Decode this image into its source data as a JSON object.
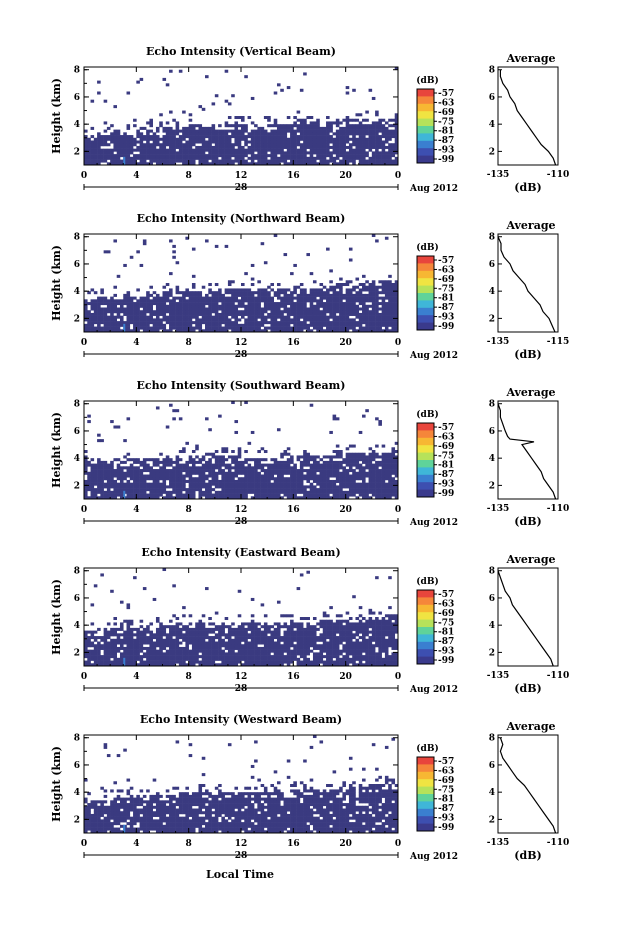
{
  "figure": {
    "xlabel_bottom": "Local Time",
    "colorbar": {
      "unit_label": "(dB)",
      "ticks": [
        "-57",
        "-63",
        "-69",
        "-75",
        "-81",
        "-87",
        "-93",
        "-99"
      ],
      "colors": [
        "#e8453c",
        "#f5863a",
        "#f7b733",
        "#f0e442",
        "#b6e25a",
        "#5fd39a",
        "#3fb6d8",
        "#3a7fd0",
        "#3d4fb0",
        "#3a3a8c"
      ]
    },
    "background_color": "#3a3a80",
    "gap_color": "#ffffff"
  },
  "chart_data": [
    {
      "type": "heatmap",
      "title": "Echo Intensity (Vertical Beam)",
      "ylabel": "Height (km)",
      "x_ticks": [
        "0",
        "4",
        "8",
        "12",
        "16",
        "20",
        "0"
      ],
      "x_day_label": "28",
      "x_month_label": "Aug 2012",
      "yticks": [
        "2",
        "4",
        "6",
        "8"
      ],
      "xlim": [
        0,
        24
      ],
      "ylim": [
        1,
        8.2
      ],
      "dense_top_km": [
        3.2,
        3.4,
        3.5,
        3.7,
        3.9,
        4.0,
        4.1,
        4.0,
        4.1,
        4.2,
        4.3,
        4.4,
        4.5
      ],
      "avg_profile": {
        "title": "Average",
        "xlabel": "(dB)",
        "x_ticks": [
          "-135",
          "-110"
        ],
        "y_ticks": [
          "2",
          "4",
          "6",
          "8"
        ],
        "xlim": [
          -135,
          -110
        ],
        "ylim": [
          1,
          8.2
        ],
        "height_km": [
          1.0,
          1.5,
          2.0,
          2.5,
          3.0,
          3.5,
          4.0,
          4.5,
          5.0,
          5.5,
          6.0,
          6.5,
          7.0,
          7.5,
          8.0
        ],
        "value_db": [
          -111,
          -112,
          -114,
          -117,
          -119,
          -121,
          -123,
          -125,
          -127,
          -128,
          -130,
          -131,
          -133,
          -134,
          -134
        ]
      }
    },
    {
      "type": "heatmap",
      "title": "Echo Intensity (Northward Beam)",
      "ylabel": "Height (km)",
      "x_ticks": [
        "0",
        "4",
        "8",
        "12",
        "16",
        "20",
        "0"
      ],
      "x_day_label": "28",
      "x_month_label": "Aug 2012",
      "yticks": [
        "2",
        "4",
        "6",
        "8"
      ],
      "xlim": [
        0,
        24
      ],
      "ylim": [
        1,
        8.2
      ],
      "dense_top_km": [
        3.6,
        3.7,
        3.8,
        3.9,
        4.0,
        4.1,
        4.2,
        4.1,
        4.2,
        4.3,
        4.4,
        4.6,
        4.7
      ],
      "avg_profile": {
        "title": "Average",
        "xlabel": "(dB)",
        "x_ticks": [
          "-135",
          "-115"
        ],
        "y_ticks": [
          "2",
          "4",
          "6",
          "8"
        ],
        "xlim": [
          -135,
          -115
        ],
        "ylim": [
          1,
          8.2
        ],
        "height_km": [
          1.0,
          1.5,
          2.0,
          2.5,
          3.0,
          3.5,
          4.0,
          4.5,
          5.0,
          5.5,
          6.0,
          6.5,
          7.0,
          7.5,
          8.0
        ],
        "value_db": [
          -116,
          -117,
          -118,
          -120,
          -121,
          -123,
          -125,
          -126,
          -128,
          -130,
          -131,
          -133,
          -134,
          -134,
          -135
        ]
      }
    },
    {
      "type": "heatmap",
      "title": "Echo Intensity (Southward Beam)",
      "ylabel": "Height (km)",
      "x_ticks": [
        "0",
        "4",
        "8",
        "12",
        "16",
        "20",
        "0"
      ],
      "x_day_label": "28",
      "x_month_label": "Aug 2012",
      "yticks": [
        "2",
        "4",
        "6",
        "8"
      ],
      "xlim": [
        0,
        24
      ],
      "ylim": [
        1,
        8.2
      ],
      "dense_top_km": [
        3.6,
        3.8,
        3.9,
        4.0,
        4.1,
        4.2,
        4.1,
        4.0,
        4.1,
        4.2,
        4.3,
        4.4,
        4.6
      ],
      "avg_profile": {
        "title": "Average",
        "xlabel": "(dB)",
        "x_ticks": [
          "-135",
          "-110"
        ],
        "y_ticks": [
          "2",
          "4",
          "6",
          "8"
        ],
        "xlim": [
          -135,
          -110
        ],
        "ylim": [
          1,
          8.2
        ],
        "height_km": [
          1.0,
          1.5,
          2.0,
          2.5,
          3.0,
          3.5,
          4.0,
          4.5,
          5.0,
          5.2,
          5.4,
          5.6,
          6.0,
          6.5,
          7.0,
          7.5,
          8.0
        ],
        "value_db": [
          -111,
          -112,
          -114,
          -116,
          -117,
          -119,
          -121,
          -123,
          -125,
          -120,
          -130,
          -131,
          -132,
          -133,
          -134,
          -134,
          -135
        ]
      }
    },
    {
      "type": "heatmap",
      "title": "Echo Intensity (Eastward Beam)",
      "ylabel": "Height (km)",
      "x_ticks": [
        "0",
        "4",
        "8",
        "12",
        "16",
        "20",
        "0"
      ],
      "x_day_label": "28",
      "x_month_label": "Aug 2012",
      "yticks": [
        "2",
        "4",
        "6",
        "8"
      ],
      "xlim": [
        0,
        24
      ],
      "ylim": [
        1,
        8.2
      ],
      "dense_top_km": [
        3.5,
        3.7,
        3.8,
        4.0,
        4.2,
        4.3,
        4.2,
        4.1,
        4.2,
        4.3,
        4.4,
        4.6,
        4.8
      ],
      "avg_profile": {
        "title": "Average",
        "xlabel": "(dB)",
        "x_ticks": [
          "-135",
          "-110"
        ],
        "y_ticks": [
          "2",
          "4",
          "6",
          "8"
        ],
        "xlim": [
          -135,
          -110
        ],
        "ylim": [
          1,
          8.2
        ],
        "height_km": [
          1.0,
          1.5,
          2.0,
          2.5,
          3.0,
          3.5,
          4.0,
          4.5,
          5.0,
          5.5,
          6.0,
          6.5,
          7.0,
          7.5,
          8.0
        ],
        "value_db": [
          -112,
          -113,
          -115,
          -117,
          -119,
          -121,
          -123,
          -125,
          -127,
          -129,
          -130,
          -132,
          -133,
          -134,
          -135
        ]
      }
    },
    {
      "type": "heatmap",
      "title": "Echo Intensity (Westward Beam)",
      "ylabel": "Height (km)",
      "x_ticks": [
        "0",
        "4",
        "8",
        "12",
        "16",
        "20",
        "0"
      ],
      "x_day_label": "28",
      "x_month_label": "Aug 2012",
      "yticks": [
        "2",
        "4",
        "6",
        "8"
      ],
      "xlim": [
        0,
        24
      ],
      "ylim": [
        1,
        8.2
      ],
      "dense_top_km": [
        3.4,
        3.5,
        3.6,
        3.8,
        4.0,
        4.1,
        4.0,
        4.0,
        4.1,
        4.2,
        4.3,
        4.5,
        4.6
      ],
      "avg_profile": {
        "title": "Average",
        "xlabel": "(dB)",
        "x_ticks": [
          "-135",
          "-110"
        ],
        "y_ticks": [
          "2",
          "4",
          "6",
          "8"
        ],
        "xlim": [
          -135,
          -110
        ],
        "ylim": [
          1,
          8.2
        ],
        "height_km": [
          1.0,
          1.5,
          2.0,
          2.5,
          3.0,
          3.5,
          4.0,
          4.5,
          5.0,
          5.5,
          6.0,
          6.5,
          7.0,
          7.5,
          8.0
        ],
        "value_db": [
          -111,
          -112,
          -114,
          -116,
          -118,
          -120,
          -122,
          -124,
          -127,
          -129,
          -131,
          -133,
          -134,
          -133,
          -134
        ]
      }
    }
  ]
}
